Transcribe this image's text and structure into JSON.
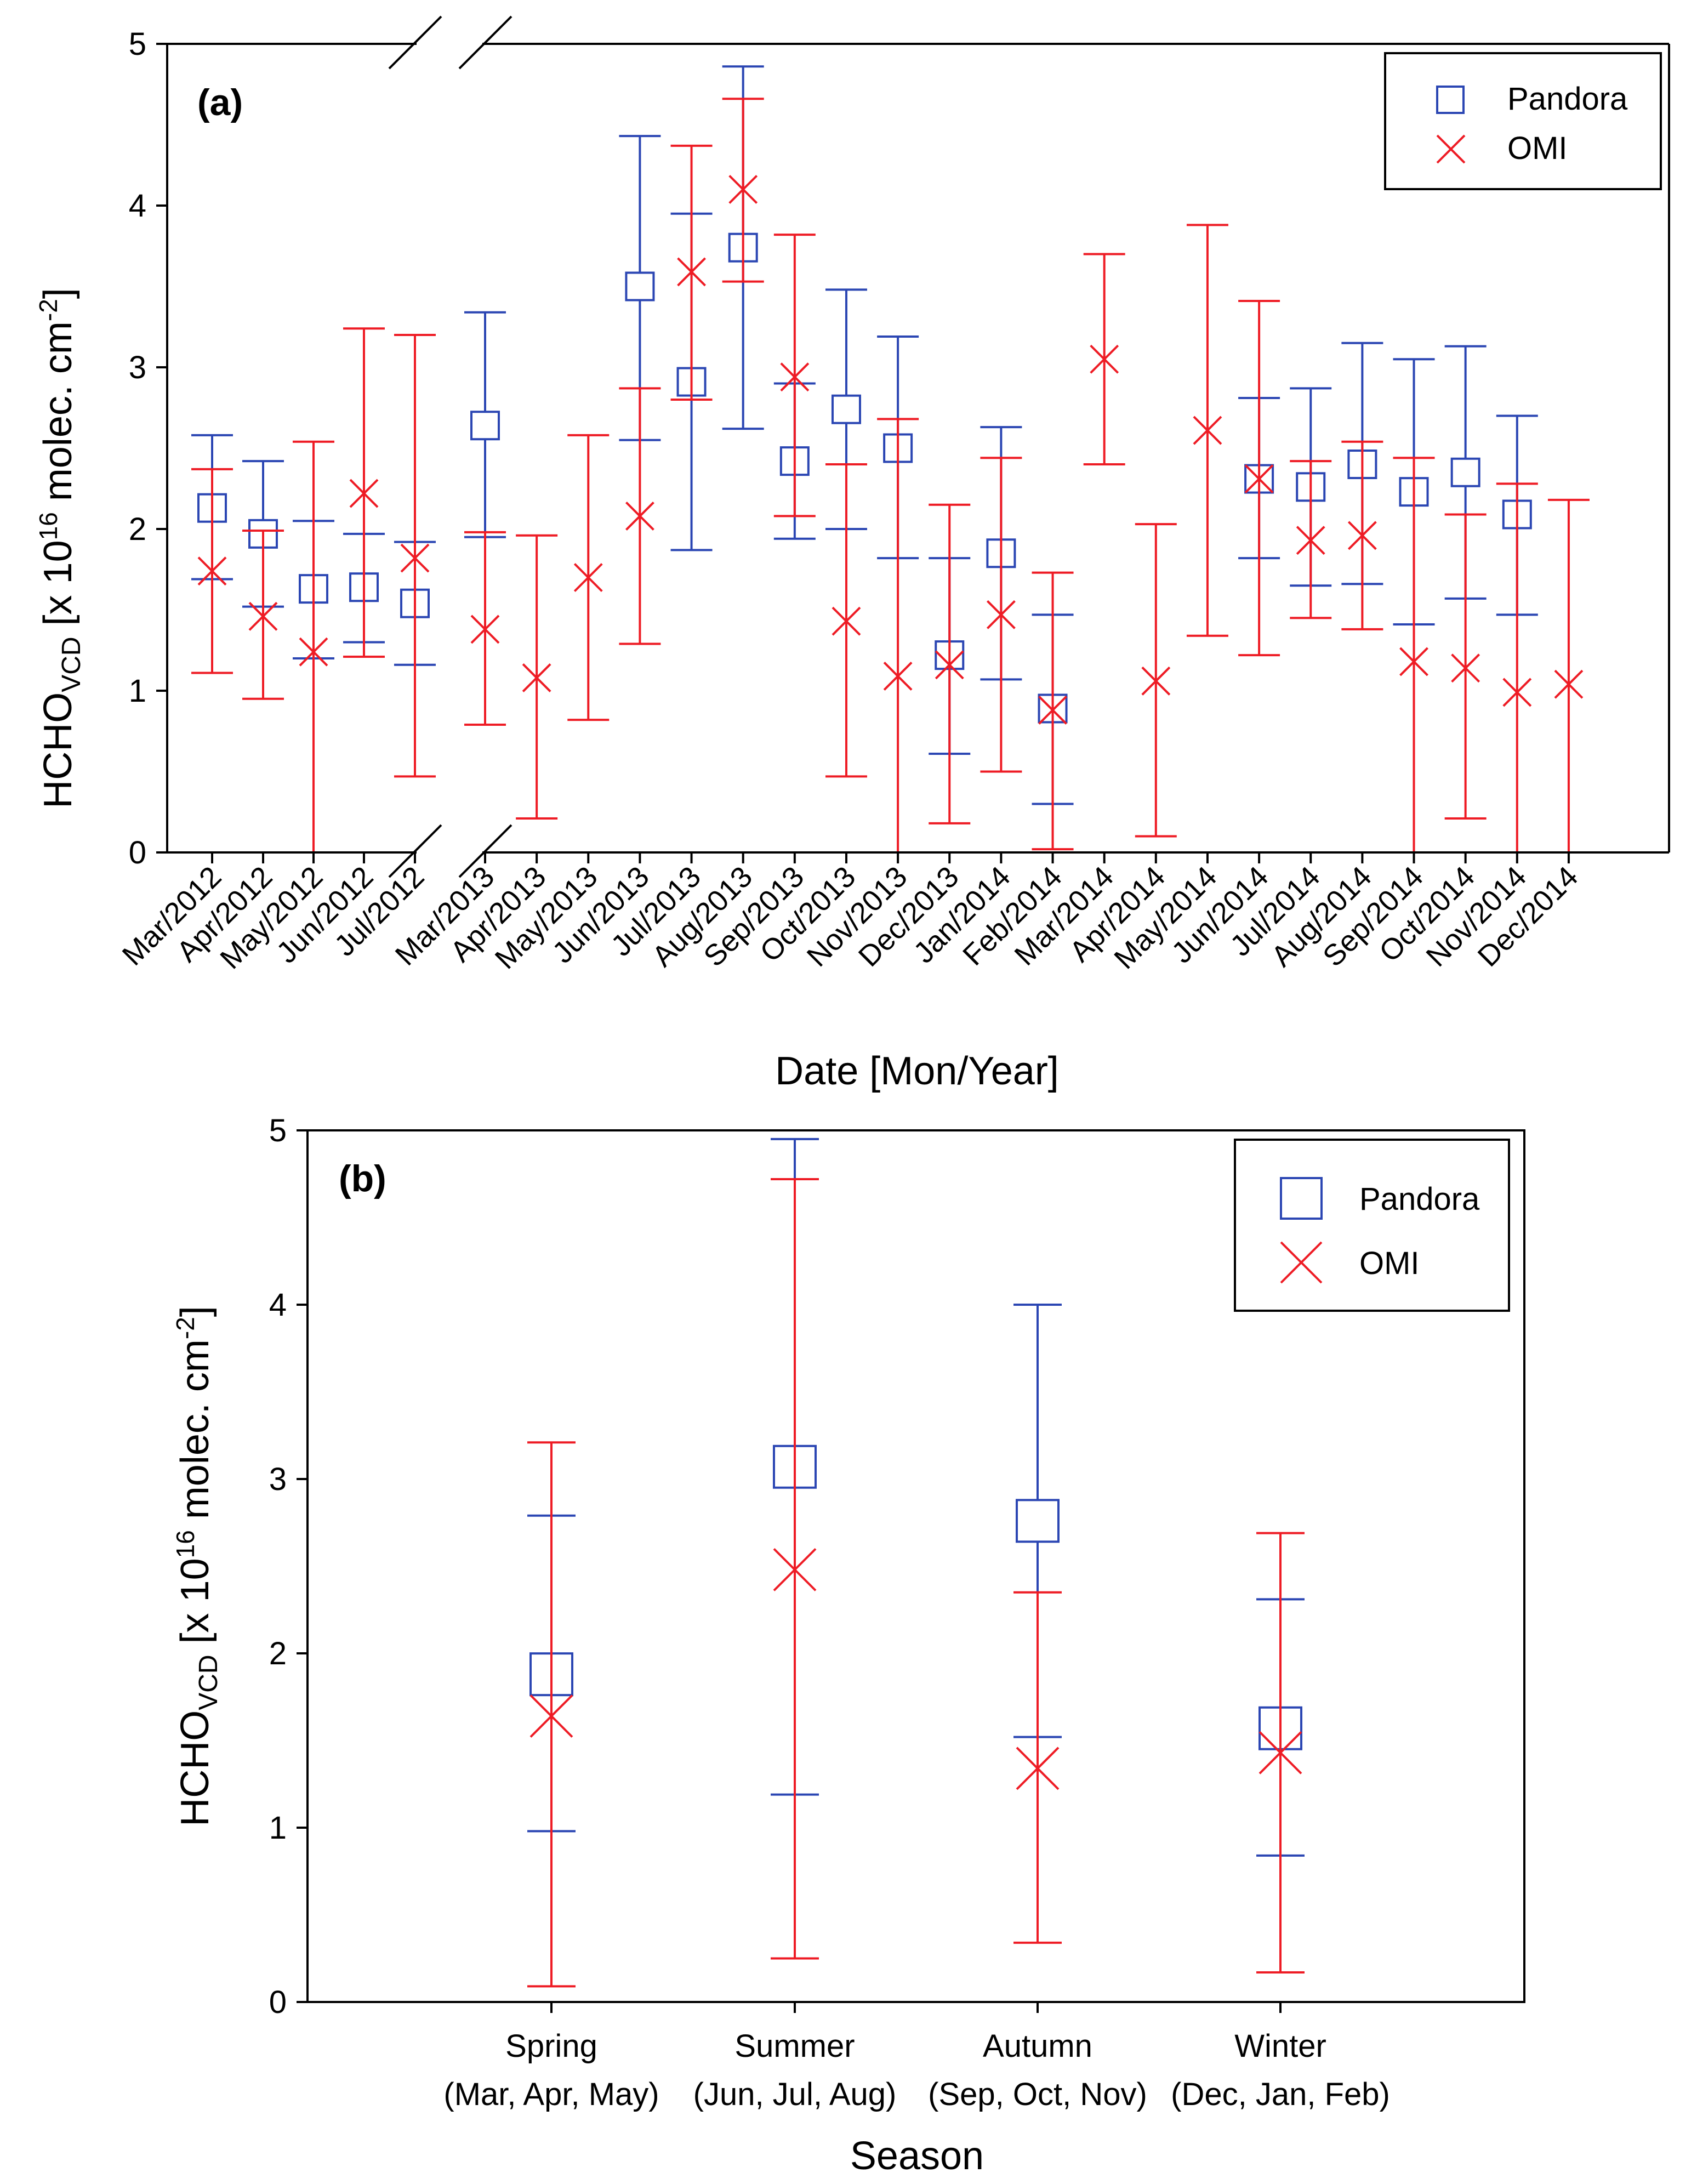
{
  "colors": {
    "pandora": "#2b46b3",
    "omi": "#ee1c25",
    "axis": "#000000"
  },
  "chart_data": [
    {
      "id": "a",
      "type": "scatter",
      "panel_label": "(a)",
      "title": "",
      "xlabel": "Date [Mon/Year]",
      "ylabel": {
        "main": "HCHO",
        "sub": "VCD",
        "mid": " [x 10",
        "sup": "16",
        "tail": " molec. cm",
        "sup2": "-2",
        "end": "]"
      },
      "ylim": [
        0,
        5
      ],
      "yticks": [
        0,
        1,
        2,
        3,
        4,
        5
      ],
      "axis_break_after": "Jul/2012",
      "legend": {
        "placement": "top-right",
        "entries": [
          "Pandora",
          "OMI"
        ]
      },
      "categories": [
        "Mar/2012",
        "Apr/2012",
        "May/2012",
        "Jun/2012",
        "Jul/2012",
        "Mar/2013",
        "Apr/2013",
        "May/2013",
        "Jun/2013",
        "Jul/2013",
        "Aug/2013",
        "Sep/2013",
        "Oct/2013",
        "Nov/2013",
        "Dec/2013",
        "Jan/2014",
        "Feb/2014",
        "Mar/2014",
        "Apr/2014",
        "May/2014",
        "Jun/2014",
        "Jul/2014",
        "Aug/2014",
        "Sep/2014",
        "Oct/2014",
        "Nov/2014",
        "Dec/2014"
      ],
      "series": [
        {
          "name": "Pandora",
          "marker": "square",
          "values": [
            2.13,
            1.97,
            1.63,
            1.64,
            1.54,
            2.64,
            null,
            null,
            3.5,
            2.91,
            3.74,
            2.42,
            2.74,
            2.5,
            1.22,
            1.85,
            0.89,
            null,
            null,
            null,
            2.31,
            2.26,
            2.4,
            2.23,
            2.35,
            2.09,
            null
          ],
          "err_low": [
            1.69,
            1.52,
            1.2,
            1.3,
            1.16,
            1.95,
            null,
            null,
            2.55,
            1.87,
            2.62,
            1.94,
            2.0,
            1.82,
            0.61,
            1.07,
            0.3,
            null,
            null,
            null,
            1.82,
            1.65,
            1.66,
            1.41,
            1.57,
            1.47,
            null
          ],
          "err_high": [
            2.58,
            2.42,
            2.05,
            1.97,
            1.92,
            3.34,
            null,
            null,
            4.43,
            3.95,
            4.86,
            2.9,
            3.48,
            3.19,
            1.82,
            2.63,
            1.47,
            null,
            null,
            null,
            2.81,
            2.87,
            3.15,
            3.05,
            3.13,
            2.7,
            null
          ]
        },
        {
          "name": "OMI",
          "marker": "x",
          "values": [
            1.74,
            1.46,
            1.24,
            2.22,
            1.82,
            1.38,
            1.08,
            1.7,
            2.08,
            3.59,
            4.1,
            2.94,
            1.43,
            1.09,
            1.16,
            1.47,
            0.88,
            3.05,
            1.06,
            2.61,
            2.31,
            1.93,
            1.96,
            1.18,
            1.14,
            0.99,
            1.04
          ],
          "err_low": [
            1.11,
            0.95,
            0.0,
            1.21,
            0.47,
            0.79,
            0.21,
            0.82,
            1.29,
            2.8,
            3.53,
            2.08,
            0.47,
            0.0,
            0.18,
            0.5,
            0.02,
            2.4,
            0.1,
            1.34,
            1.22,
            1.45,
            1.38,
            0.0,
            0.21,
            0.0,
            0.0
          ],
          "err_high": [
            2.37,
            1.99,
            2.54,
            3.24,
            3.2,
            1.98,
            1.96,
            2.58,
            2.87,
            4.37,
            4.66,
            3.82,
            2.4,
            2.68,
            2.15,
            2.44,
            1.73,
            3.7,
            2.03,
            3.88,
            3.41,
            2.42,
            2.54,
            2.44,
            2.09,
            2.28,
            2.18
          ]
        }
      ]
    },
    {
      "id": "b",
      "type": "scatter",
      "panel_label": "(b)",
      "title": "",
      "xlabel": "Season",
      "ylabel": {
        "main": "HCHO",
        "sub": "VCD",
        "mid": " [x 10",
        "sup": "16",
        "tail": " molec. cm",
        "sup2": "-2",
        "end": "]"
      },
      "ylim": [
        0,
        5
      ],
      "yticks": [
        0,
        1,
        2,
        3,
        4,
        5
      ],
      "legend": {
        "placement": "top-right",
        "entries": [
          "Pandora",
          "OMI"
        ]
      },
      "categories": [
        "Spring",
        "Summer",
        "Autumn",
        "Winter"
      ],
      "category_sublabels": [
        "(Mar, Apr, May)",
        "(Jun, Jul, Aug)",
        "(Sep, Oct, Nov)",
        "(Dec, Jan, Feb)"
      ],
      "series": [
        {
          "name": "Pandora",
          "marker": "square",
          "values": [
            1.88,
            3.07,
            2.76,
            1.57
          ],
          "err_low": [
            0.98,
            1.19,
            1.52,
            0.84
          ],
          "err_high": [
            2.79,
            4.95,
            4.0,
            2.31
          ]
        },
        {
          "name": "OMI",
          "marker": "x",
          "values": [
            1.64,
            2.48,
            1.34,
            1.43
          ],
          "err_low": [
            0.09,
            0.25,
            0.34,
            0.17
          ],
          "err_high": [
            3.21,
            4.72,
            2.35,
            2.69
          ]
        }
      ]
    }
  ]
}
